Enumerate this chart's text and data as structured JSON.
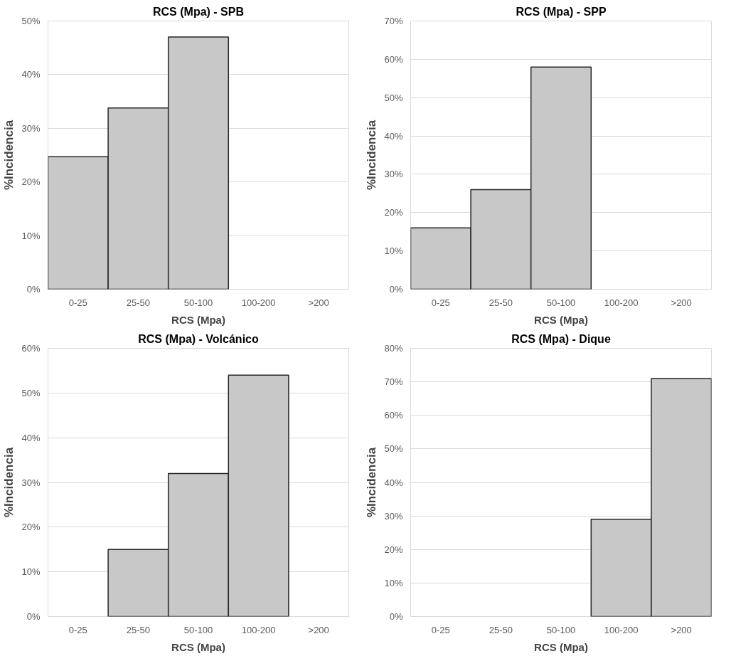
{
  "chart_data": [
    {
      "type": "bar",
      "title": "RCS (Mpa) - SPB",
      "xlabel": "RCS (Mpa)",
      "ylabel": "%Incidencia",
      "categories": [
        "0-25",
        "25-50",
        "50-100",
        "100-200",
        ">200"
      ],
      "values": [
        24.7,
        33.8,
        47,
        null,
        null
      ],
      "color": "#c8c8c8",
      "ylim": [
        0,
        50
      ],
      "yticks": [
        {
          "value": 0,
          "label": "0%"
        },
        {
          "value": 10,
          "label": "10%"
        },
        {
          "value": 20,
          "label": "20%"
        },
        {
          "value": 30,
          "label": "30%"
        },
        {
          "value": 40,
          "label": "40%"
        },
        {
          "value": 50,
          "label": "50%"
        }
      ],
      "grid": "y"
    },
    {
      "type": "bar",
      "title": "RCS (Mpa) - SPP",
      "xlabel": "RCS (Mpa)",
      "ylabel": "%Incidencia",
      "categories": [
        "0-25",
        "25-50",
        "50-100",
        "100-200",
        ">200"
      ],
      "values": [
        16,
        26,
        58,
        null,
        null
      ],
      "color": "#c8c8c8",
      "ylim": [
        0,
        70
      ],
      "yticks": [
        {
          "value": 0,
          "label": "0%"
        },
        {
          "value": 10,
          "label": "10%"
        },
        {
          "value": 20,
          "label": "20%"
        },
        {
          "value": 30,
          "label": "30%"
        },
        {
          "value": 40,
          "label": "40%"
        },
        {
          "value": 50,
          "label": "50%"
        },
        {
          "value": 60,
          "label": "60%"
        },
        {
          "value": 70,
          "label": "70%"
        }
      ],
      "grid": "y"
    },
    {
      "type": "bar",
      "title": "RCS (Mpa) - Volcánico",
      "xlabel": "RCS (Mpa)",
      "ylabel": "%Incidencia",
      "categories": [
        "0-25",
        "25-50",
        "50-100",
        "100-200",
        ">200"
      ],
      "values": [
        null,
        15,
        32,
        54,
        null
      ],
      "color": "#c8c8c8",
      "ylim": [
        0,
        60
      ],
      "yticks": [
        {
          "value": 0,
          "label": "0%"
        },
        {
          "value": 10,
          "label": "10%"
        },
        {
          "value": 20,
          "label": "20%"
        },
        {
          "value": 30,
          "label": "30%"
        },
        {
          "value": 40,
          "label": "40%"
        },
        {
          "value": 50,
          "label": "50%"
        },
        {
          "value": 60,
          "label": "60%"
        }
      ],
      "grid": "y"
    },
    {
      "type": "bar",
      "title": "RCS (Mpa) - Dique",
      "xlabel": "RCS (Mpa)",
      "ylabel": "%Incidencia",
      "categories": [
        "0-25",
        "25-50",
        "50-100",
        "100-200",
        ">200"
      ],
      "values": [
        null,
        null,
        null,
        29,
        71
      ],
      "color": "#c8c8c8",
      "ylim": [
        0,
        80
      ],
      "yticks": [
        {
          "value": 0,
          "label": "0%"
        },
        {
          "value": 10,
          "label": "10%"
        },
        {
          "value": 20,
          "label": "20%"
        },
        {
          "value": 30,
          "label": "30%"
        },
        {
          "value": 40,
          "label": "40%"
        },
        {
          "value": 50,
          "label": "50%"
        },
        {
          "value": 60,
          "label": "60%"
        },
        {
          "value": 70,
          "label": "70%"
        },
        {
          "value": 80,
          "label": "80%"
        }
      ],
      "grid": "y"
    }
  ]
}
